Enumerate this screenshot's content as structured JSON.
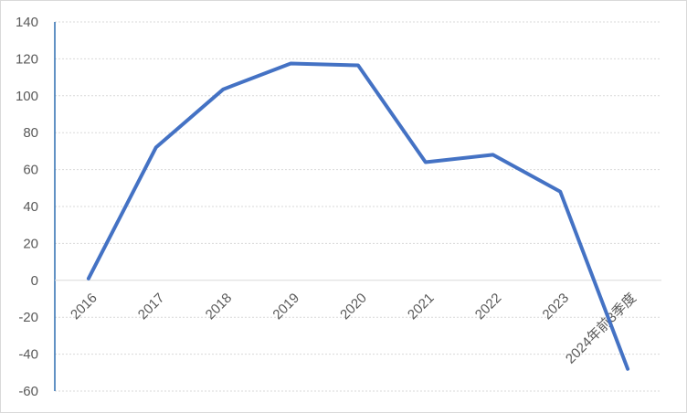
{
  "chart_data": {
    "type": "line",
    "title": "",
    "xlabel": "",
    "ylabel": "",
    "categories": [
      "2016",
      "2017",
      "2018",
      "2019",
      "2020",
      "2021",
      "2022",
      "2023",
      "2024年前3季度"
    ],
    "series": [
      {
        "values": [
          1,
          72,
          103.5,
          117.5,
          116.5,
          64,
          68,
          48,
          -48
        ],
        "color": "#4472C4"
      }
    ],
    "ylim": [
      -60,
      140
    ],
    "yticks": [
      140,
      120,
      100,
      80,
      60,
      40,
      20,
      0,
      -20,
      -40,
      -60
    ],
    "grid": true,
    "gridline_style": "dotted",
    "legend": "none"
  }
}
